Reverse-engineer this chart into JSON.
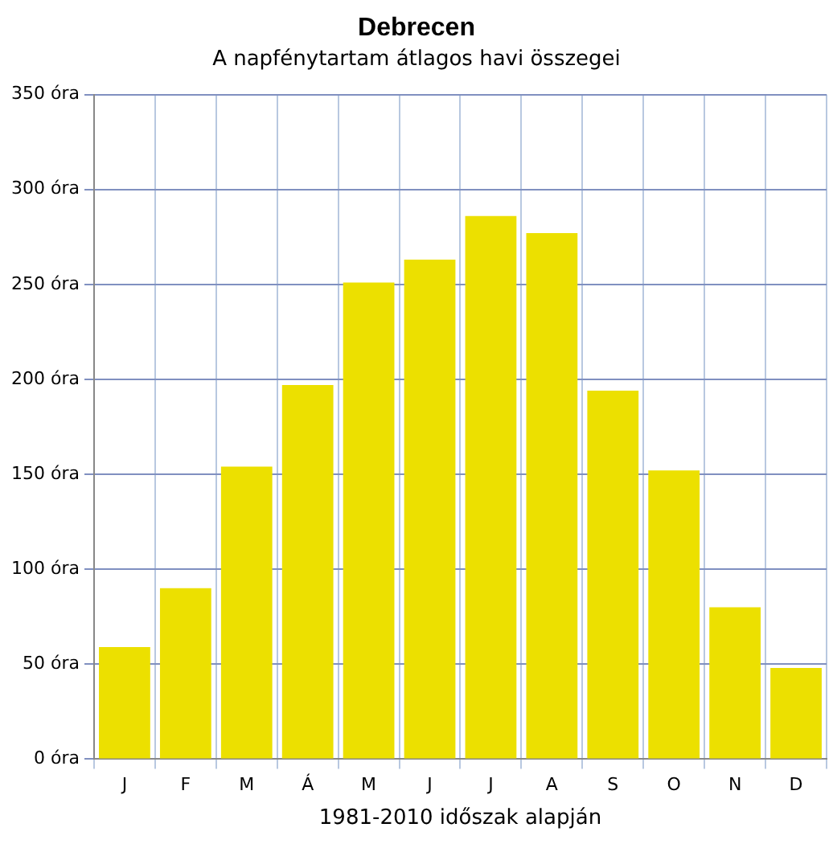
{
  "chart_data": {
    "type": "bar",
    "title": "Debrecen",
    "subtitle": "A napfénytartam átlagos havi összegei",
    "xlabel": "1981-2010 időszak alapján",
    "categories": [
      "J",
      "F",
      "M",
      "Á",
      "M",
      "J",
      "J",
      "A",
      "S",
      "O",
      "N",
      "D"
    ],
    "values": [
      59,
      90,
      154,
      197,
      251,
      263,
      286,
      277,
      194,
      152,
      80,
      48
    ],
    "color": "#ece000",
    "ylim": [
      0,
      350
    ],
    "yticks": [
      {
        "value": 0,
        "label": "0 óra"
      },
      {
        "value": 50,
        "label": "50 óra"
      },
      {
        "value": 100,
        "label": "100 óra"
      },
      {
        "value": 150,
        "label": "150 óra"
      },
      {
        "value": 200,
        "label": "200 óra"
      },
      {
        "value": 250,
        "label": "250 óra"
      },
      {
        "value": 300,
        "label": "300 óra"
      },
      {
        "value": 350,
        "label": "350 óra"
      }
    ],
    "grid": true
  }
}
